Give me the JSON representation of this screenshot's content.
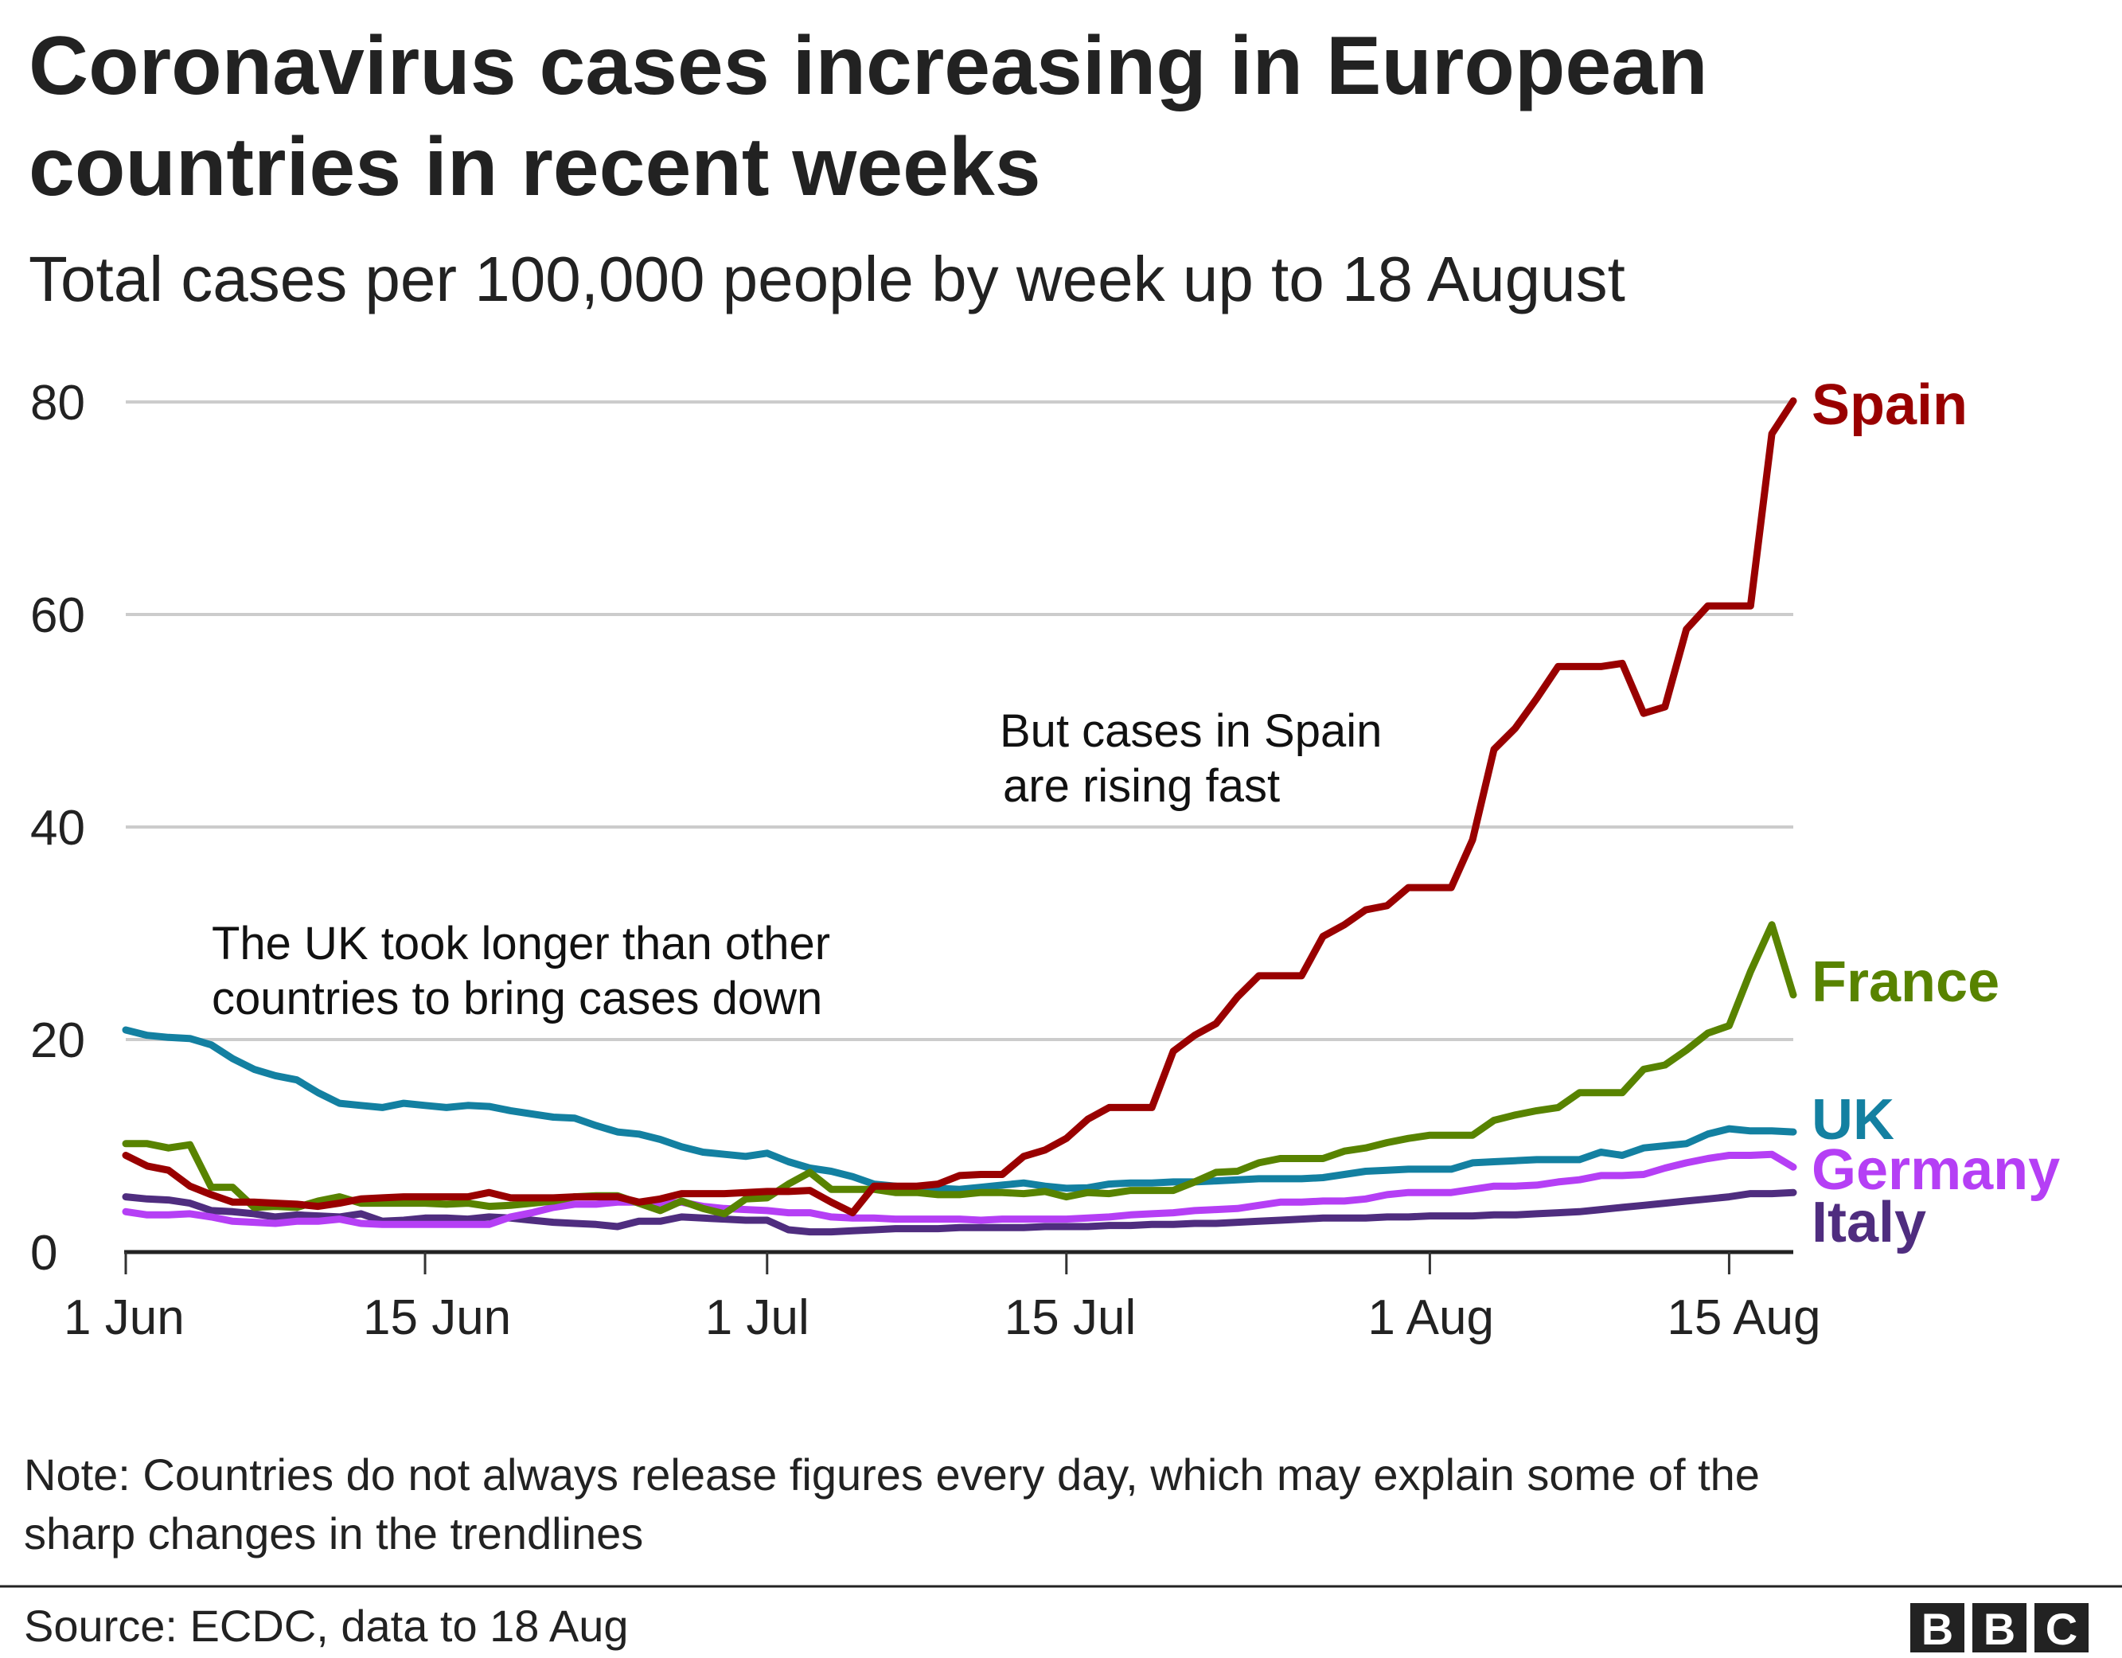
{
  "title_lines": [
    "Coronavirus cases increasing in European",
    "countries in recent weeks"
  ],
  "subtitle": "Total cases per 100,000 people by week up to 18 August",
  "note_lines": [
    "Note: Countries do not always release figures every day, which may explain some of the",
    "sharp changes in the trendlines"
  ],
  "source": "Source: ECDC, data to 18 Aug",
  "logo": "BBC",
  "chart_data": {
    "type": "line",
    "title": "Coronavirus cases increasing in European countries in recent weeks",
    "subtitle": "Total cases per 100,000 people by week up to 18 August",
    "x_start": "2020-06-01",
    "x_end": "2020-08-18",
    "x_ticks": [
      {
        "date": "2020-06-01",
        "label": "1 Jun"
      },
      {
        "date": "2020-06-15",
        "label": "15 Jun"
      },
      {
        "date": "2020-07-01",
        "label": "1 Jul"
      },
      {
        "date": "2020-07-15",
        "label": "15 Jul"
      },
      {
        "date": "2020-08-01",
        "label": "1 Aug"
      },
      {
        "date": "2020-08-15",
        "label": "15 Aug"
      }
    ],
    "ylim": [
      0,
      80
    ],
    "y_ticks": [
      0,
      20,
      40,
      60,
      80
    ],
    "grid": "horizontal",
    "series": [
      {
        "name": "Italy",
        "color": "#4f2d7f",
        "values": [
          5.2,
          5.0,
          4.9,
          4.6,
          3.9,
          3.8,
          3.6,
          3.3,
          3.5,
          3.4,
          3.3,
          3.6,
          2.9,
          3.0,
          3.2,
          3.2,
          3.1,
          3.3,
          3.2,
          3.0,
          2.8,
          2.7,
          2.6,
          2.4,
          2.9,
          2.9,
          3.3,
          3.2,
          3.1,
          3.0,
          3.0,
          2.1,
          1.9,
          1.9,
          2.0,
          2.1,
          2.2,
          2.2,
          2.2,
          2.3,
          2.3,
          2.3,
          2.3,
          2.4,
          2.4,
          2.4,
          2.5,
          2.5,
          2.6,
          2.6,
          2.7,
          2.7,
          2.8,
          2.9,
          3.0,
          3.1,
          3.2,
          3.2,
          3.2,
          3.3,
          3.3,
          3.4,
          3.4,
          3.4,
          3.5,
          3.5,
          3.6,
          3.7,
          3.8,
          4.0,
          4.2,
          4.4,
          4.6,
          4.8,
          5.0,
          5.2,
          5.5,
          5.5,
          5.6
        ]
      },
      {
        "name": "Germany",
        "color": "#b53ff5",
        "values": [
          3.8,
          3.5,
          3.5,
          3.6,
          3.3,
          2.9,
          2.8,
          2.7,
          2.9,
          2.9,
          3.1,
          2.7,
          2.6,
          2.6,
          2.6,
          2.6,
          2.6,
          2.6,
          3.3,
          3.7,
          4.2,
          4.5,
          4.5,
          4.7,
          4.7,
          4.5,
          4.7,
          4.3,
          4.1,
          4.0,
          3.9,
          3.7,
          3.7,
          3.3,
          3.2,
          3.2,
          3.1,
          3.1,
          3.1,
          3.1,
          3.0,
          3.1,
          3.1,
          3.1,
          3.1,
          3.2,
          3.3,
          3.5,
          3.6,
          3.7,
          3.9,
          4.0,
          4.1,
          4.4,
          4.7,
          4.7,
          4.8,
          4.8,
          5.0,
          5.4,
          5.6,
          5.6,
          5.6,
          5.9,
          6.2,
          6.2,
          6.3,
          6.6,
          6.8,
          7.2,
          7.2,
          7.3,
          7.9,
          8.4,
          8.8,
          9.1,
          9.1,
          9.2,
          8.0
        ]
      },
      {
        "name": "UK",
        "color": "#1380a1",
        "values": [
          20.9,
          20.4,
          20.2,
          20.1,
          19.5,
          18.2,
          17.2,
          16.6,
          16.2,
          15.0,
          14.0,
          13.8,
          13.6,
          14.0,
          13.8,
          13.6,
          13.8,
          13.7,
          13.3,
          13.0,
          12.7,
          12.6,
          11.9,
          11.3,
          11.1,
          10.6,
          9.9,
          9.4,
          9.2,
          9.0,
          9.3,
          8.5,
          7.9,
          7.6,
          7.1,
          6.4,
          6.2,
          5.9,
          6.0,
          5.9,
          6.1,
          6.3,
          6.5,
          6.2,
          6.0,
          6.05,
          6.4,
          6.5,
          6.5,
          6.6,
          6.6,
          6.7,
          6.8,
          6.9,
          6.9,
          6.9,
          7.0,
          7.3,
          7.6,
          7.7,
          7.8,
          7.8,
          7.8,
          8.4,
          8.5,
          8.6,
          8.7,
          8.7,
          8.7,
          9.4,
          9.1,
          9.8,
          10.0,
          10.2,
          11.1,
          11.6,
          11.4,
          11.4,
          11.3
        ]
      },
      {
        "name": "France",
        "color": "#588300",
        "values": [
          10.2,
          10.2,
          9.8,
          10.1,
          6.1,
          6.1,
          4.2,
          4.3,
          4.2,
          4.8,
          5.2,
          4.6,
          4.6,
          4.6,
          4.6,
          4.5,
          4.6,
          4.3,
          4.4,
          4.6,
          4.8,
          5.2,
          5.3,
          5.3,
          4.6,
          3.9,
          4.8,
          4.1,
          3.6,
          5.0,
          5.1,
          6.4,
          7.5,
          5.9,
          5.9,
          5.9,
          5.6,
          5.6,
          5.4,
          5.4,
          5.6,
          5.6,
          5.5,
          5.7,
          5.2,
          5.6,
          5.5,
          5.8,
          5.8,
          5.8,
          6.6,
          7.5,
          7.6,
          8.4,
          8.8,
          8.8,
          8.8,
          9.5,
          9.8,
          10.3,
          10.7,
          11.0,
          11.0,
          11.0,
          12.4,
          12.9,
          13.3,
          13.6,
          15.0,
          15.0,
          15.0,
          17.2,
          17.6,
          19.0,
          20.6,
          21.3,
          26.4,
          30.8,
          24.2
        ]
      },
      {
        "name": "Spain",
        "color": "#990000",
        "values": [
          9.1,
          8.1,
          7.7,
          6.2,
          5.4,
          4.7,
          4.7,
          4.6,
          4.5,
          4.3,
          4.6,
          5.0,
          5.1,
          5.2,
          5.2,
          5.2,
          5.2,
          5.6,
          5.1,
          5.1,
          5.1,
          5.2,
          5.2,
          5.2,
          4.7,
          5.0,
          5.5,
          5.5,
          5.5,
          5.6,
          5.7,
          5.7,
          5.8,
          4.7,
          3.7,
          6.2,
          6.2,
          6.2,
          6.4,
          7.2,
          7.3,
          7.3,
          9.0,
          9.6,
          10.7,
          12.5,
          13.6,
          13.6,
          13.6,
          18.9,
          20.4,
          21.5,
          24.0,
          26.0,
          26.0,
          26.0,
          29.7,
          30.8,
          32.2,
          32.6,
          34.3,
          34.3,
          34.3,
          38.8,
          47.3,
          49.3,
          52.1,
          55.1,
          55.1,
          55.1,
          55.4,
          50.7,
          51.3,
          58.6,
          60.8,
          60.8,
          60.8,
          77.0,
          80.1
        ]
      }
    ],
    "annotations": [
      {
        "lines": [
          "The UK took longer than other",
          "countries to bring cases down"
        ]
      },
      {
        "lines": [
          "But cases in Spain",
          "are rising fast"
        ]
      }
    ]
  }
}
